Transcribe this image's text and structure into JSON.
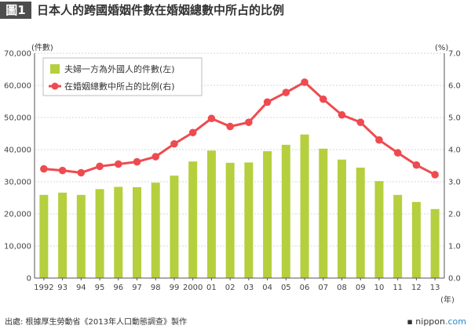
{
  "header": {
    "tag": "圖1",
    "title": "日本人的跨國婚姻件數在婚姻總數中所占的比例"
  },
  "chart_data": {
    "type": "bar+line",
    "categories": [
      "1992",
      "93",
      "94",
      "95",
      "96",
      "97",
      "98",
      "99",
      "2000",
      "01",
      "02",
      "03",
      "04",
      "05",
      "06",
      "07",
      "08",
      "09",
      "10",
      "11",
      "12",
      "13"
    ],
    "x_unit": "(年)",
    "series": [
      {
        "name": "夫婦一方為外國人的件數(左)",
        "type": "bar",
        "axis": "left",
        "color": "#b5cf3e",
        "values": [
          25900,
          26600,
          25900,
          27700,
          28400,
          28300,
          29700,
          31900,
          36300,
          39700,
          35900,
          36000,
          39500,
          41500,
          44700,
          40300,
          36900,
          34400,
          30200,
          25900,
          23700,
          21500
        ]
      },
      {
        "name": "在婚姻總數中所占的比例(右)",
        "type": "line",
        "axis": "right",
        "color": "#ee4b50",
        "values": [
          3.4,
          3.35,
          3.28,
          3.48,
          3.55,
          3.62,
          3.78,
          4.18,
          4.53,
          4.97,
          4.72,
          4.85,
          5.48,
          5.78,
          6.1,
          5.57,
          5.08,
          4.85,
          4.3,
          3.9,
          3.52,
          3.22
        ]
      }
    ],
    "y_left": {
      "label": "(件數)",
      "ylim": [
        0,
        70000
      ],
      "ticks": [
        "0",
        "10,000",
        "20,000",
        "30,000",
        "40,000",
        "50,000",
        "60,000",
        "70,000"
      ]
    },
    "y_right": {
      "label": "(%)",
      "ylim": [
        0,
        7
      ],
      "ticks": [
        "0.0",
        "1.0",
        "2.0",
        "3.0",
        "4.0",
        "5.0",
        "6.0",
        "7.0"
      ]
    },
    "grid": true,
    "legend_position": "top-left"
  },
  "footer": {
    "source": "出處: 根據厚生勞動省《2013年人口動態調查》製作",
    "brand_prefix": "▪ nippon",
    "brand_suffix": ".com"
  }
}
